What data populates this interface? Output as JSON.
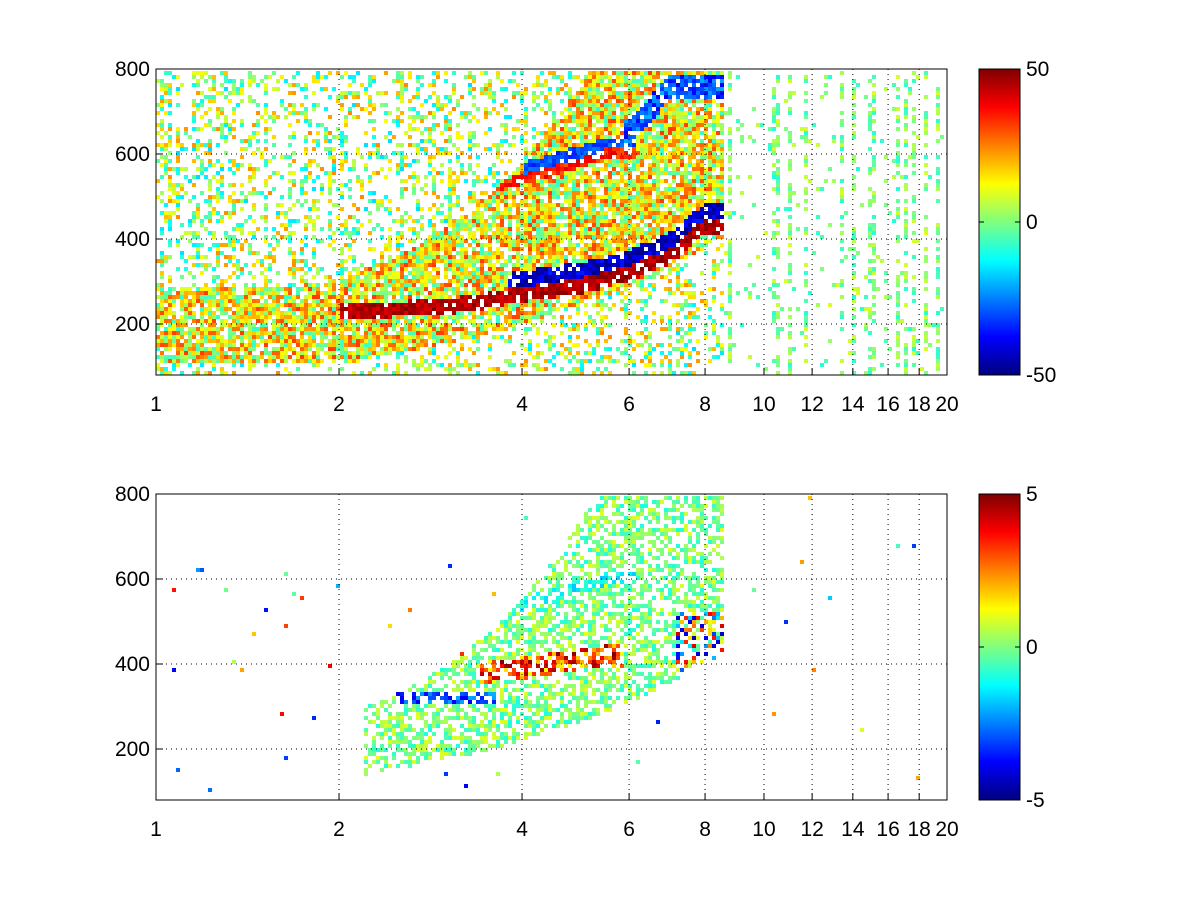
{
  "chart_data": [
    {
      "type": "heatmap",
      "title": "",
      "xlabel": "",
      "ylabel": "",
      "xscale": "log",
      "xlim": [
        1,
        20
      ],
      "ylim": [
        80,
        800
      ],
      "xticks": [
        1,
        2,
        4,
        6,
        8,
        10,
        12,
        14,
        16,
        18,
        20
      ],
      "yticks": [
        200,
        400,
        600,
        800
      ],
      "grid": true,
      "colormap": "jet",
      "clim": [
        -50,
        50
      ],
      "colorbar_ticks": [
        -50,
        0,
        50
      ],
      "features": [
        {
          "name": "lower band",
          "x": [
            2.0,
            3.0,
            4.0,
            5.0,
            6.0,
            7.0,
            8.0
          ],
          "y": [
            230,
            240,
            270,
            290,
            320,
            360,
            430
          ]
        },
        {
          "name": "upper band",
          "x": [
            2.5,
            3.5,
            4.5,
            5.5
          ],
          "y": [
            480,
            520,
            560,
            600
          ]
        },
        {
          "name": "outer band",
          "x": [
            6.0,
            7.0
          ],
          "y": [
            650,
            760
          ]
        }
      ]
    },
    {
      "type": "heatmap",
      "title": "",
      "xlabel": "",
      "ylabel": "",
      "xscale": "log",
      "xlim": [
        1,
        20
      ],
      "ylim": [
        80,
        800
      ],
      "xticks": [
        1,
        2,
        4,
        6,
        8,
        10,
        12,
        14,
        16,
        18,
        20
      ],
      "yticks": [
        200,
        400,
        600,
        800
      ],
      "grid": true,
      "colormap": "jet",
      "clim": [
        -5,
        5
      ],
      "colorbar_ticks": [
        -5,
        0,
        5
      ],
      "features": [
        {
          "name": "lower band",
          "x": [
            2.0,
            3.0,
            4.0,
            5.0,
            6.0,
            7.0,
            8.0
          ],
          "y": [
            220,
            235,
            250,
            270,
            300,
            350,
            440
          ]
        },
        {
          "name": "upper band",
          "x": [
            2.5,
            3.5,
            4.5,
            5.5
          ],
          "y": [
            480,
            520,
            560,
            600
          ]
        },
        {
          "name": "positive patch",
          "x": [
            3.5,
            4.5,
            5.5
          ],
          "y": [
            380,
            400,
            420
          ]
        },
        {
          "name": "negative line",
          "x": [
            2.5,
            3.5
          ],
          "y": [
            320,
            320
          ]
        }
      ]
    }
  ]
}
